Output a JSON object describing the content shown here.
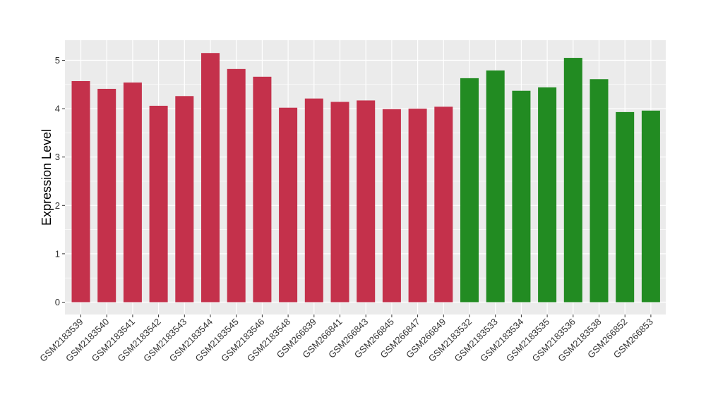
{
  "chart_data": {
    "type": "bar",
    "title": "",
    "xlabel": "",
    "ylabel": "Expression Level",
    "ylim": [
      -0.25,
      5.4
    ],
    "yticks": [
      0,
      1,
      2,
      3,
      4,
      5
    ],
    "ytick_labels": [
      "0",
      "1",
      "2",
      "3",
      "4",
      "5"
    ],
    "grid": true,
    "legend": "none",
    "colors": {
      "group1": "#C4314B",
      "group2": "#228B22",
      "panel": "#EBEBEB",
      "gridline": "#FFFFFF"
    },
    "categories": [
      "GSM2183539",
      "GSM2183540",
      "GSM2183541",
      "GSM2183542",
      "GSM2183543",
      "GSM2183544",
      "GSM2183545",
      "GSM2183546",
      "GSM2183548",
      "GSM266839",
      "GSM266841",
      "GSM266843",
      "GSM266845",
      "GSM266847",
      "GSM266849",
      "GSM2183532",
      "GSM2183533",
      "GSM2183534",
      "GSM2183535",
      "GSM2183536",
      "GSM2183538",
      "GSM266852",
      "GSM266853"
    ],
    "values": [
      4.57,
      4.41,
      4.54,
      4.06,
      4.26,
      5.15,
      4.82,
      4.66,
      4.02,
      4.21,
      4.14,
      4.17,
      3.99,
      4.0,
      4.04,
      4.63,
      4.79,
      4.37,
      4.44,
      5.05,
      4.61,
      3.93,
      3.96
    ],
    "groups": [
      1,
      1,
      1,
      1,
      1,
      1,
      1,
      1,
      1,
      1,
      1,
      1,
      1,
      1,
      1,
      2,
      2,
      2,
      2,
      2,
      2,
      2,
      2
    ]
  }
}
